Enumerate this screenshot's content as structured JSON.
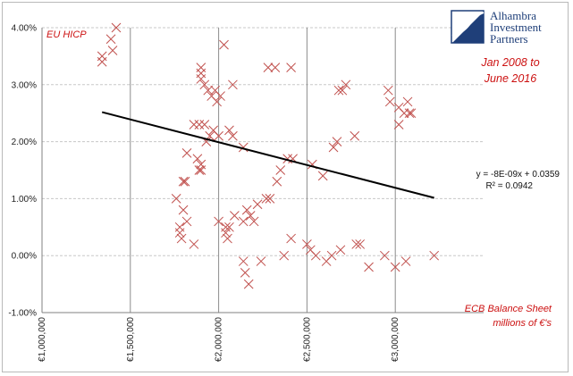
{
  "chart_data": {
    "type": "scatter",
    "title": "EU HICP",
    "subtitle": [
      "Jan 2008  to",
      "June 2016"
    ],
    "xlabel": [
      "ECB Balance Sheet",
      "millions of €'s"
    ],
    "xlim": [
      1000000,
      3500000
    ],
    "ylim": [
      -0.01,
      0.04
    ],
    "x_ticks": [
      "€1,000,000",
      "€1,500,000",
      "€2,000,000",
      "€2,500,000",
      "€3,000,000"
    ],
    "y_ticks": [
      "-1.00%",
      "0.00%",
      "1.00%",
      "2.00%",
      "3.00%",
      "4.00%"
    ],
    "grid": "vertical and horizontal major gridlines",
    "marker": "x",
    "marker_color": "#c0504d",
    "trendline": {
      "equation": "y = -8E-09x + 0.0359",
      "r_squared": "R² = 0.0942",
      "x_range": [
        1340000,
        3220000
      ]
    },
    "points": [
      [
        1340000,
        0.034
      ],
      [
        1340000,
        0.035
      ],
      [
        1390000,
        0.038
      ],
      [
        1400000,
        0.036
      ],
      [
        1420000,
        0.04
      ],
      [
        1760000,
        0.01
      ],
      [
        1780000,
        0.004
      ],
      [
        1780000,
        0.005
      ],
      [
        1790000,
        0.003
      ],
      [
        1800000,
        0.008
      ],
      [
        1800000,
        0.013
      ],
      [
        1810000,
        0.013
      ],
      [
        1820000,
        0.006
      ],
      [
        1820000,
        0.018
      ],
      [
        1860000,
        0.002
      ],
      [
        1860000,
        0.023
      ],
      [
        1880000,
        0.017
      ],
      [
        1890000,
        0.015
      ],
      [
        1890000,
        0.023
      ],
      [
        1900000,
        0.015
      ],
      [
        1900000,
        0.016
      ],
      [
        1900000,
        0.031
      ],
      [
        1900000,
        0.032
      ],
      [
        1900000,
        0.033
      ],
      [
        1920000,
        0.03
      ],
      [
        1920000,
        0.023
      ],
      [
        1930000,
        0.02
      ],
      [
        1940000,
        0.029
      ],
      [
        1950000,
        0.021
      ],
      [
        1960000,
        0.028
      ],
      [
        1970000,
        0.022
      ],
      [
        1980000,
        0.029
      ],
      [
        1990000,
        0.027
      ],
      [
        2000000,
        0.006
      ],
      [
        2000000,
        0.021
      ],
      [
        2010000,
        0.028
      ],
      [
        2030000,
        0.037
      ],
      [
        2040000,
        0.004
      ],
      [
        2040000,
        0.005
      ],
      [
        2050000,
        0.003
      ],
      [
        2060000,
        0.022
      ],
      [
        2060000,
        0.005
      ],
      [
        2080000,
        0.03
      ],
      [
        2080000,
        0.021
      ],
      [
        2090000,
        0.007
      ],
      [
        2140000,
        0.019
      ],
      [
        2140000,
        0.006
      ],
      [
        2140000,
        -0.001
      ],
      [
        2150000,
        -0.003
      ],
      [
        2160000,
        0.008
      ],
      [
        2170000,
        -0.005
      ],
      [
        2180000,
        0.007
      ],
      [
        2200000,
        0.006
      ],
      [
        2220000,
        0.009
      ],
      [
        2240000,
        -0.001
      ],
      [
        2270000,
        0.01
      ],
      [
        2280000,
        0.033
      ],
      [
        2290000,
        0.01
      ],
      [
        2320000,
        0.033
      ],
      [
        2330000,
        0.013
      ],
      [
        2350000,
        0.015
      ],
      [
        2370000,
        0.0
      ],
      [
        2390000,
        0.017
      ],
      [
        2410000,
        0.033
      ],
      [
        2410000,
        0.003
      ],
      [
        2420000,
        0.017
      ],
      [
        2500000,
        0.002
      ],
      [
        2520000,
        0.001
      ],
      [
        2530000,
        0.016
      ],
      [
        2550000,
        0.0
      ],
      [
        2590000,
        0.014
      ],
      [
        2610000,
        -0.001
      ],
      [
        2640000,
        0.0
      ],
      [
        2650000,
        0.019
      ],
      [
        2670000,
        0.02
      ],
      [
        2680000,
        0.029
      ],
      [
        2690000,
        0.001
      ],
      [
        2700000,
        0.029
      ],
      [
        2720000,
        0.03
      ],
      [
        2770000,
        0.021
      ],
      [
        2780000,
        0.002
      ],
      [
        2800000,
        0.002
      ],
      [
        2850000,
        -0.002
      ],
      [
        2940000,
        0.0
      ],
      [
        2960000,
        0.029
      ],
      [
        2970000,
        0.027
      ],
      [
        3000000,
        -0.002
      ],
      [
        3020000,
        0.023
      ],
      [
        3020000,
        0.026
      ],
      [
        3050000,
        0.025
      ],
      [
        3060000,
        -0.001
      ],
      [
        3070000,
        0.027
      ],
      [
        3080000,
        0.025
      ],
      [
        3090000,
        0.025
      ],
      [
        3220000,
        0.0
      ]
    ]
  },
  "logo": {
    "lines": [
      "Alhambra",
      "Investment",
      "Partners"
    ],
    "colors": {
      "navy": "#1f3f79"
    }
  },
  "colors": {
    "accent_red": "#cc1111",
    "trendline": "#000000",
    "grid": "#bfbfbf"
  }
}
